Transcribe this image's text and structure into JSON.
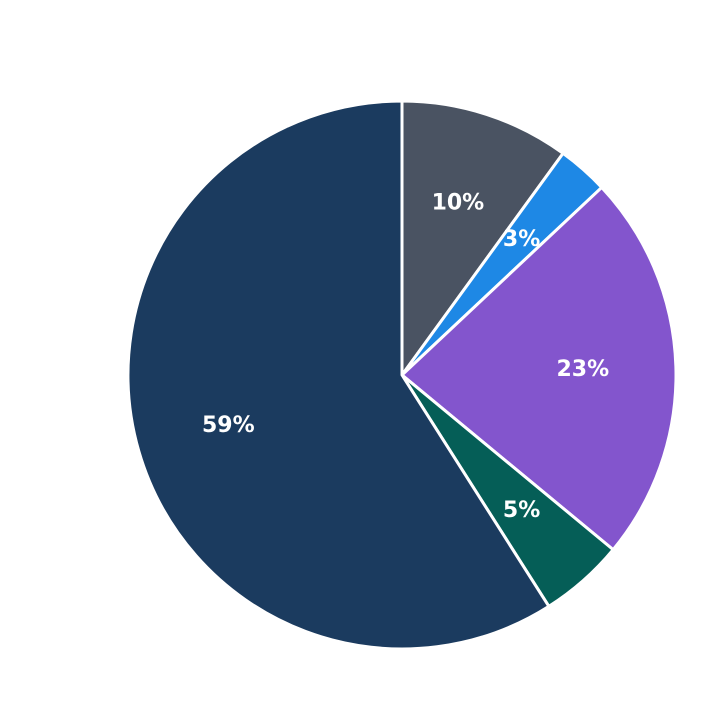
{
  "chart_data": {
    "type": "pie",
    "title": "",
    "start_position": "top",
    "direction": "clockwise",
    "label_radius_fraction": 0.66,
    "label_color": "#ffffff",
    "separator_color": "#ffffff",
    "separator_width": 3,
    "background": "#ffffff",
    "slices": [
      {
        "label": "10%",
        "value": 10,
        "color": "#4a5362"
      },
      {
        "label": "3%",
        "value": 3,
        "color": "#1e88e5"
      },
      {
        "label": "23%",
        "value": 23,
        "color": "#8355cd"
      },
      {
        "label": "5%",
        "value": 5,
        "color": "#055e57"
      },
      {
        "label": "59%",
        "value": 59,
        "color": "#1b3b5f"
      }
    ]
  }
}
